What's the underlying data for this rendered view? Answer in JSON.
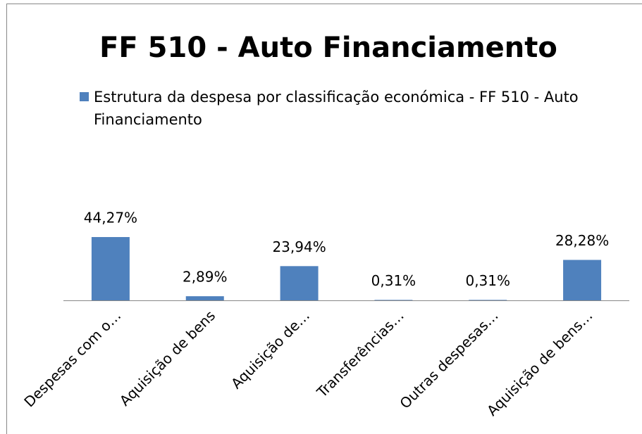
{
  "chart_data": {
    "type": "bar",
    "title": "FF 510 - Auto Financiamento",
    "categories": [
      "Despesas com o…",
      "Aquisição de bens",
      "Aquisição de…",
      "Transferências…",
      "Outras despesas…",
      "Aquisição de bens…"
    ],
    "series": [
      {
        "name": "Estrutura da despesa por classificação económica - FF 510 - Auto Financiamento",
        "color": "#4f81bd",
        "values": [
          44.27,
          2.89,
          23.94,
          0.31,
          0.31,
          28.28
        ],
        "value_labels": [
          "44,27%",
          "2,89%",
          "23,94%",
          "0,31%",
          "0,31%",
          "28,28%"
        ]
      }
    ]
  }
}
